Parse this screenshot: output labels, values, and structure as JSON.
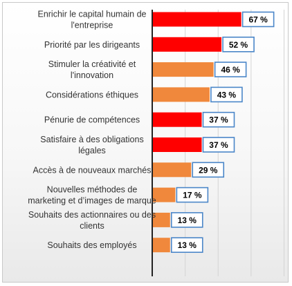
{
  "chart_data": {
    "type": "bar",
    "orientation": "horizontal",
    "categories": [
      [
        "Enrichir le capital humain de",
        "l'entreprise"
      ],
      [
        "Priorité par les dirigeants"
      ],
      [
        "Stimuler la créativité et",
        "l'innovation"
      ],
      [
        "Considérations éthiques"
      ],
      [
        "Pénurie de compétences"
      ],
      [
        "Satisfaire à des obligations",
        "légales"
      ],
      [
        "Accès à de nouveaux marchés"
      ],
      [
        "Nouvelles méthodes de",
        "marketing et d’images de marque"
      ],
      [
        "Souhaits des actionnaires ou des",
        "clients"
      ],
      [
        "Souhaits des employés"
      ]
    ],
    "values": [
      67,
      52,
      46,
      43,
      37,
      37,
      29,
      17,
      13,
      13
    ],
    "value_labels": [
      "67 %",
      "52 %",
      "46 %",
      "43 %",
      "37 %",
      "37 %",
      "29 %",
      "17 %",
      "13 %",
      "13 %"
    ],
    "bar_colors": [
      "#ff0000",
      "#ff0000",
      "#f0883c",
      "#f0883c",
      "#ff0000",
      "#ff0000",
      "#f0883c",
      "#f0883c",
      "#f0883c",
      "#f0883c"
    ],
    "xlim": [
      0,
      100
    ],
    "grid": true,
    "label_box_border_color": "#4a86c8"
  }
}
